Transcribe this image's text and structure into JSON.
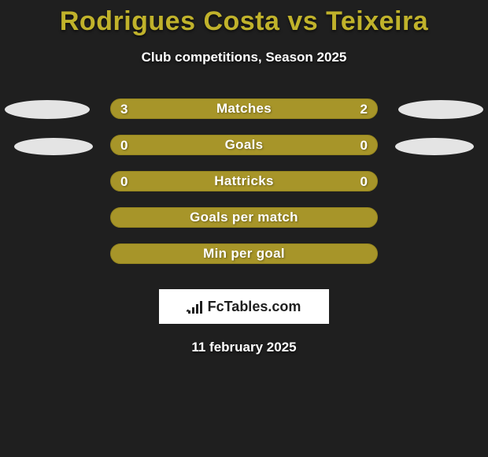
{
  "colors": {
    "background": "#1f1f1f",
    "title": "#c0b22b",
    "pill_bg": "#a79529",
    "pill_border": "#95851f",
    "text": "#ffffff",
    "ellipse": "#e4e4e4",
    "logo_card_bg": "#ffffff",
    "logo_text": "#1f1f1f"
  },
  "title": "Rodrigues Costa vs Teixeira",
  "subtitle": "Club competitions, Season 2025",
  "rows": [
    {
      "label": "Matches",
      "left": "3",
      "right": "2",
      "left_shape": "large",
      "right_shape": "large"
    },
    {
      "label": "Goals",
      "left": "0",
      "right": "0",
      "left_shape": "small",
      "right_shape": "small"
    },
    {
      "label": "Hattricks",
      "left": "0",
      "right": "0",
      "left_shape": "none",
      "right_shape": "none"
    },
    {
      "label": "Goals per match",
      "left": "",
      "right": "",
      "left_shape": "none",
      "right_shape": "none"
    },
    {
      "label": "Min per goal",
      "left": "",
      "right": "",
      "left_shape": "none",
      "right_shape": "none"
    }
  ],
  "logo_text": "FcTables.com",
  "date": "11 february 2025"
}
